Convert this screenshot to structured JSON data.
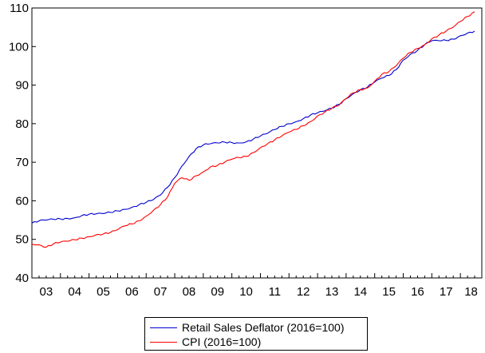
{
  "chart_data": {
    "type": "line",
    "x_ticks": [
      "03",
      "04",
      "05",
      "06",
      "07",
      "08",
      "09",
      "10",
      "11",
      "12",
      "13",
      "14",
      "15",
      "16",
      "17",
      "18"
    ],
    "y_ticks": [
      40,
      50,
      60,
      70,
      80,
      90,
      100,
      110
    ],
    "ylim": [
      40,
      110
    ],
    "xlim": [
      2003.0,
      2018.75
    ],
    "grid": false,
    "legend_position": "bottom",
    "series": [
      {
        "name": "Retail Sales Deflator (2016=100)",
        "color": "#0000cc",
        "points": [
          [
            2003.0,
            54.2
          ],
          [
            2003.25,
            54.8
          ],
          [
            2003.5,
            55.0
          ],
          [
            2003.75,
            55.2
          ],
          [
            2004.0,
            55.3
          ],
          [
            2004.25,
            55.4
          ],
          [
            2004.5,
            55.6
          ],
          [
            2004.75,
            56.2
          ],
          [
            2005.0,
            56.5
          ],
          [
            2005.25,
            56.6
          ],
          [
            2005.5,
            56.7
          ],
          [
            2005.75,
            57.0
          ],
          [
            2006.0,
            57.4
          ],
          [
            2006.25,
            57.8
          ],
          [
            2006.5,
            58.3
          ],
          [
            2006.75,
            59.0
          ],
          [
            2007.0,
            59.6
          ],
          [
            2007.25,
            60.3
          ],
          [
            2007.5,
            61.5
          ],
          [
            2007.75,
            63.5
          ],
          [
            2008.0,
            66.0
          ],
          [
            2008.25,
            69.0
          ],
          [
            2008.5,
            71.5
          ],
          [
            2008.75,
            73.5
          ],
          [
            2009.0,
            74.5
          ],
          [
            2009.25,
            74.8
          ],
          [
            2009.5,
            75.0
          ],
          [
            2009.75,
            75.2
          ],
          [
            2010.0,
            75.1
          ],
          [
            2010.25,
            75.0
          ],
          [
            2010.5,
            75.3
          ],
          [
            2010.75,
            76.0
          ],
          [
            2011.0,
            76.8
          ],
          [
            2011.25,
            77.5
          ],
          [
            2011.5,
            78.5
          ],
          [
            2011.75,
            79.3
          ],
          [
            2012.0,
            80.0
          ],
          [
            2012.25,
            80.5
          ],
          [
            2012.5,
            81.3
          ],
          [
            2012.75,
            82.2
          ],
          [
            2013.0,
            82.8
          ],
          [
            2013.25,
            83.3
          ],
          [
            2013.5,
            84.0
          ],
          [
            2013.75,
            85.0
          ],
          [
            2014.0,
            86.5
          ],
          [
            2014.25,
            87.8
          ],
          [
            2014.5,
            88.8
          ],
          [
            2014.75,
            89.5
          ],
          [
            2015.0,
            90.8
          ],
          [
            2015.25,
            91.8
          ],
          [
            2015.5,
            92.5
          ],
          [
            2015.75,
            94.0
          ],
          [
            2016.0,
            96.5
          ],
          [
            2016.25,
            98.0
          ],
          [
            2016.5,
            99.0
          ],
          [
            2016.75,
            100.5
          ],
          [
            2017.0,
            101.5
          ],
          [
            2017.25,
            101.5
          ],
          [
            2017.5,
            101.6
          ],
          [
            2017.75,
            101.9
          ],
          [
            2018.0,
            102.8
          ],
          [
            2018.25,
            103.5
          ],
          [
            2018.5,
            104.0
          ]
        ]
      },
      {
        "name": "CPI (2016=100)",
        "color": "#ff0000",
        "points": [
          [
            2003.0,
            48.8
          ],
          [
            2003.25,
            48.6
          ],
          [
            2003.5,
            48.0
          ],
          [
            2003.75,
            48.8
          ],
          [
            2004.0,
            49.3
          ],
          [
            2004.25,
            49.5
          ],
          [
            2004.5,
            49.9
          ],
          [
            2004.75,
            50.3
          ],
          [
            2005.0,
            50.7
          ],
          [
            2005.25,
            51.2
          ],
          [
            2005.5,
            51.4
          ],
          [
            2005.75,
            51.8
          ],
          [
            2006.0,
            52.5
          ],
          [
            2006.25,
            53.5
          ],
          [
            2006.5,
            54.0
          ],
          [
            2006.75,
            54.8
          ],
          [
            2007.0,
            56.0
          ],
          [
            2007.25,
            57.5
          ],
          [
            2007.5,
            59.0
          ],
          [
            2007.75,
            61.0
          ],
          [
            2008.0,
            64.5
          ],
          [
            2008.25,
            66.0
          ],
          [
            2008.5,
            65.3
          ],
          [
            2008.75,
            66.5
          ],
          [
            2009.0,
            67.5
          ],
          [
            2009.25,
            68.8
          ],
          [
            2009.5,
            69.2
          ],
          [
            2009.75,
            70.0
          ],
          [
            2010.0,
            70.8
          ],
          [
            2010.25,
            71.2
          ],
          [
            2010.5,
            71.5
          ],
          [
            2010.75,
            72.5
          ],
          [
            2011.0,
            73.8
          ],
          [
            2011.25,
            74.8
          ],
          [
            2011.5,
            75.8
          ],
          [
            2011.75,
            76.8
          ],
          [
            2012.0,
            77.8
          ],
          [
            2012.25,
            78.5
          ],
          [
            2012.5,
            79.5
          ],
          [
            2012.75,
            80.5
          ],
          [
            2013.0,
            82.0
          ],
          [
            2013.25,
            83.0
          ],
          [
            2013.5,
            84.0
          ],
          [
            2013.75,
            84.8
          ],
          [
            2014.0,
            86.5
          ],
          [
            2014.25,
            88.0
          ],
          [
            2014.5,
            88.8
          ],
          [
            2014.75,
            89.3
          ],
          [
            2015.0,
            91.0
          ],
          [
            2015.25,
            92.8
          ],
          [
            2015.5,
            93.5
          ],
          [
            2015.75,
            95.0
          ],
          [
            2016.0,
            97.0
          ],
          [
            2016.25,
            98.5
          ],
          [
            2016.5,
            99.5
          ],
          [
            2016.75,
            100.5
          ],
          [
            2017.0,
            102.0
          ],
          [
            2017.25,
            103.0
          ],
          [
            2017.5,
            104.0
          ],
          [
            2017.75,
            105.0
          ],
          [
            2018.0,
            106.5
          ],
          [
            2018.25,
            107.8
          ],
          [
            2018.5,
            109.0
          ]
        ]
      }
    ]
  }
}
